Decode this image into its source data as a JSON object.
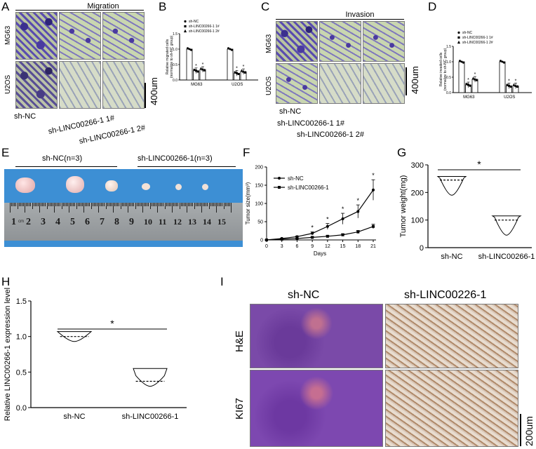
{
  "panels": {
    "A": "A",
    "B": "B",
    "C": "C",
    "D": "D",
    "E": "E",
    "F": "F",
    "G": "G",
    "H": "H",
    "I": "I"
  },
  "panel_a": {
    "title": "Migration",
    "rows": [
      "MG63",
      "U2OS"
    ],
    "cols": [
      "sh-NC",
      "sh-LINC00266-1 1#",
      "sh-LINC00266-1 2#"
    ],
    "scale": "400um"
  },
  "panel_c": {
    "title": "Invasion",
    "rows": [
      "MG63",
      "U2OS"
    ],
    "cols": [
      "sh-NC",
      "sh-LINC00266-1 1#",
      "sh-LINC00266-1 2#"
    ],
    "scale": "400um"
  },
  "panel_e": {
    "label_nc": "sh-NC(n=3)",
    "label_kd": "sh-LINC00266-1(n=3)",
    "ruler_numbers": [
      "1",
      "2",
      "3",
      "4",
      "5",
      "6",
      "7",
      "8",
      "9",
      "10",
      "11",
      "12",
      "13",
      "14",
      "15"
    ],
    "ruler_unit": "cm"
  },
  "panel_i": {
    "cols": [
      "sh-NC",
      "sh-LINC00226-1"
    ],
    "rows": [
      "H&E",
      "KI67"
    ],
    "scale": "200um"
  },
  "chart_data": [
    {
      "id": "B",
      "type": "bar",
      "ylabel": "Relative migrated cells\n(normalize to sh-NC group)",
      "categories": [
        "MG63",
        "U2OS"
      ],
      "series": [
        {
          "name": "sh-NC",
          "values": [
            1.0,
            1.0
          ],
          "marker": "circle"
        },
        {
          "name": "sh-LINC00266-1 1#",
          "values": [
            0.3,
            0.22
          ],
          "marker": "square"
        },
        {
          "name": "sh-LINC00266-1 2#",
          "values": [
            0.34,
            0.27
          ],
          "marker": "triangle"
        }
      ],
      "significance": [
        {
          "category": "MG63",
          "series": 1,
          "text": "*"
        },
        {
          "category": "MG63",
          "series": 2,
          "text": "*"
        },
        {
          "category": "U2OS",
          "series": 1,
          "text": "*"
        },
        {
          "category": "U2OS",
          "series": 2,
          "text": "*"
        }
      ],
      "yticks": [
        "0.0",
        "0.5",
        "1.0",
        "1.5"
      ],
      "ylim": [
        0,
        1.5
      ]
    },
    {
      "id": "D",
      "type": "bar",
      "ylabel": "Relative invaded cells\n(normalize to sh-NC group)",
      "categories": [
        "MG63",
        "U2OS"
      ],
      "series": [
        {
          "name": "sh-NC",
          "values": [
            1.0,
            1.0
          ],
          "marker": "circle"
        },
        {
          "name": "sh-LINC00266-1 1#",
          "values": [
            0.25,
            0.22
          ],
          "marker": "square"
        },
        {
          "name": "sh-LINC00266-1 2#",
          "values": [
            0.43,
            0.22
          ],
          "marker": "triangle"
        }
      ],
      "significance": [
        {
          "category": "MG63",
          "series": 1,
          "text": "*"
        },
        {
          "category": "MG63",
          "series": 2,
          "text": "*"
        },
        {
          "category": "U2OS",
          "series": 1,
          "text": "*"
        },
        {
          "category": "U2OS",
          "series": 2,
          "text": "*"
        }
      ],
      "yticks": [
        "0.0",
        "0.5",
        "1.0",
        "1.5"
      ],
      "ylim": [
        0,
        1.5
      ]
    },
    {
      "id": "F",
      "type": "line",
      "xlabel": "Days",
      "ylabel": "Tumor size(mm³)",
      "x": [
        0,
        3,
        6,
        9,
        12,
        15,
        18,
        21
      ],
      "xticks": [
        "0",
        "3",
        "6",
        "9",
        "12",
        "15",
        "18",
        "21"
      ],
      "yticks": [
        "0",
        "50",
        "100",
        "150",
        "200"
      ],
      "ylim": [
        0,
        200
      ],
      "series": [
        {
          "name": "sh-NC",
          "marker": "circle",
          "values": [
            0,
            4,
            9,
            18,
            37,
            58,
            78,
            137
          ],
          "err": [
            0,
            1,
            2,
            4,
            8,
            15,
            18,
            28
          ]
        },
        {
          "name": "sh-LINC00266-1",
          "marker": "square",
          "values": [
            0,
            2,
            4,
            7,
            10,
            14,
            22,
            37
          ],
          "err": [
            0,
            1,
            1,
            2,
            2,
            3,
            4,
            6
          ]
        }
      ],
      "significance_x": [
        9,
        12,
        15,
        18,
        21
      ],
      "significance_text": "*"
    },
    {
      "id": "G",
      "type": "violin",
      "ylabel": "Tumor weight(mg)",
      "categories": [
        "sh-NC",
        "sh-LINC00266-1"
      ],
      "yticks": [
        "0",
        "100",
        "200",
        "300"
      ],
      "ylim": [
        0,
        300
      ],
      "groups": [
        {
          "min": 190,
          "max": 258,
          "median": 245,
          "q1": 230,
          "q3": 252
        },
        {
          "min": 45,
          "max": 115,
          "median": 100,
          "q1": 80,
          "q3": 110
        }
      ],
      "significance_text": "*"
    },
    {
      "id": "H",
      "type": "violin",
      "ylabel": "Relative LINC00266-1 expression level",
      "categories": [
        "sh-NC",
        "sh-LINC00266-1"
      ],
      "yticks": [
        "0.0",
        "0.5",
        "1.0",
        "1.5"
      ],
      "ylim": [
        0,
        1.5
      ],
      "groups": [
        {
          "min": 0.93,
          "max": 1.07,
          "median": 1.0,
          "q1": 0.95,
          "q3": 1.04
        },
        {
          "min": 0.3,
          "max": 0.55,
          "median": 0.37,
          "q1": 0.33,
          "q3": 0.45
        }
      ],
      "significance_text": "*"
    }
  ]
}
